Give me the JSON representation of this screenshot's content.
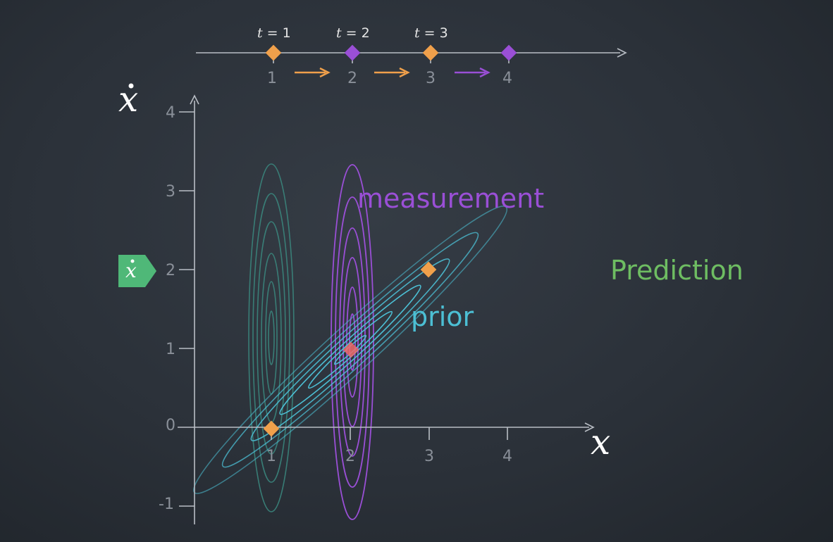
{
  "timeline": {
    "time_labels": [
      {
        "var": "t",
        "text": " = 1"
      },
      {
        "var": "t",
        "text": " = 2"
      },
      {
        "var": "t",
        "text": " = 3"
      }
    ],
    "tick_labels": [
      "1",
      "2",
      "3",
      "4"
    ],
    "marker_colors": [
      "#f0a04b",
      "#9a4fd6",
      "#f0a04b",
      "#9a4fd6"
    ],
    "arrow_colors": [
      "#f0a04b",
      "#f0a04b",
      "#9a4fd6"
    ]
  },
  "axes": {
    "x_symbol": "x",
    "y_symbol": "x",
    "x_tick_labels": [
      "1",
      "2",
      "3",
      "4"
    ],
    "y_tick_labels": [
      "4",
      "3",
      "2",
      "1",
      "0",
      "-1"
    ]
  },
  "badge": {
    "symbol": "x",
    "color": "#4fb878"
  },
  "labels": {
    "measurement": "measurement",
    "prior": "prior",
    "prediction": "Prediction"
  },
  "colors": {
    "orange": "#f0a04b",
    "purple": "#9a4fd6",
    "teal": "#4cbfd4",
    "green": "#6ebd62",
    "dim_teal": "#3b8a80"
  },
  "points": [
    {
      "x": 1,
      "y": 0,
      "color": "#f0a04b"
    },
    {
      "x": 3,
      "y": 2,
      "color": "#f0a04b"
    },
    {
      "x": 2,
      "y": 1,
      "color": "#f06a6a"
    }
  ]
}
